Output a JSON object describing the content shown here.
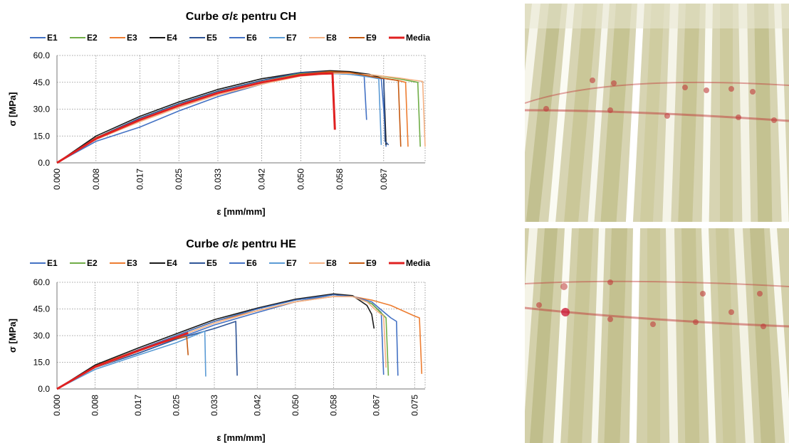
{
  "chart_data": [
    {
      "type": "line",
      "title": "Curbe σ/ε pentru CH",
      "xlabel": "ε [mm/mm]",
      "ylabel": "σ [MPa]",
      "xlim": [
        0,
        0.0755
      ],
      "ylim": [
        0,
        60
      ],
      "x_ticks": [
        "0.000",
        "0.008",
        "0.017",
        "0.025",
        "0.033",
        "0.042",
        "0.050",
        "0.058",
        "0.067"
      ],
      "y_ticks": [
        "0.0",
        "15.0",
        "30.0",
        "45.0",
        "60.0"
      ],
      "grid": true,
      "legend_position": "top",
      "series": [
        {
          "name": "E1",
          "color": "#4472c4",
          "points": [
            [
              0,
              0
            ],
            [
              0.008,
              12
            ],
            [
              0.017,
              20
            ],
            [
              0.025,
              29
            ],
            [
              0.033,
              37
            ],
            [
              0.042,
              44
            ],
            [
              0.05,
              49
            ],
            [
              0.054,
              50
            ],
            [
              0.058,
              50
            ],
            [
              0.062,
              49.5
            ],
            [
              0.0665,
              47
            ],
            [
              0.067,
              30
            ],
            [
              0.0675,
              9
            ]
          ]
        },
        {
          "name": "E2",
          "color": "#70ad47",
          "points": [
            [
              0,
              0
            ],
            [
              0.008,
              14
            ],
            [
              0.017,
              25
            ],
            [
              0.025,
              33
            ],
            [
              0.033,
              40
            ],
            [
              0.042,
              46
            ],
            [
              0.05,
              50
            ],
            [
              0.055,
              51
            ],
            [
              0.06,
              50.5
            ],
            [
              0.065,
              49
            ],
            [
              0.07,
              47
            ],
            [
              0.074,
              45
            ],
            [
              0.0745,
              9
            ]
          ]
        },
        {
          "name": "E3",
          "color": "#ed7d31",
          "points": [
            [
              0,
              0
            ],
            [
              0.008,
              14
            ],
            [
              0.017,
              24
            ],
            [
              0.025,
              32
            ],
            [
              0.033,
              39
            ],
            [
              0.042,
              45
            ],
            [
              0.05,
              49
            ],
            [
              0.055,
              50.5
            ],
            [
              0.06,
              50
            ],
            [
              0.065,
              48
            ],
            [
              0.07,
              46
            ],
            [
              0.0715,
              45
            ],
            [
              0.072,
              9
            ]
          ]
        },
        {
          "name": "E4",
          "color": "#1a1a1a",
          "points": [
            [
              0,
              0
            ],
            [
              0.008,
              15
            ],
            [
              0.017,
              26
            ],
            [
              0.025,
              34
            ],
            [
              0.033,
              41
            ],
            [
              0.042,
              47
            ],
            [
              0.05,
              50.5
            ],
            [
              0.056,
              51.5
            ],
            [
              0.06,
              51
            ],
            [
              0.064,
              49.5
            ],
            [
              0.067,
              47
            ],
            [
              0.0675,
              10
            ]
          ]
        },
        {
          "name": "E5",
          "color": "#2f5597",
          "points": [
            [
              0,
              0
            ],
            [
              0.008,
              14
            ],
            [
              0.017,
              25
            ],
            [
              0.025,
              33
            ],
            [
              0.033,
              40
            ],
            [
              0.042,
              46
            ],
            [
              0.05,
              50.5
            ],
            [
              0.056,
              51
            ],
            [
              0.06,
              50
            ],
            [
              0.064,
              48.5
            ],
            [
              0.067,
              47
            ],
            [
              0.0673,
              12
            ],
            [
              0.068,
              10
            ]
          ]
        },
        {
          "name": "E6",
          "color": "#4472c4",
          "points": [
            [
              0,
              0
            ],
            [
              0.008,
              14
            ],
            [
              0.017,
              24
            ],
            [
              0.025,
              32
            ],
            [
              0.033,
              39
            ],
            [
              0.042,
              45
            ],
            [
              0.05,
              49
            ],
            [
              0.056,
              50
            ],
            [
              0.06,
              49.5
            ],
            [
              0.063,
              48.5
            ],
            [
              0.0635,
              24
            ]
          ]
        },
        {
          "name": "E7",
          "color": "#5b9bd5",
          "points": [
            [
              0,
              0
            ],
            [
              0.008,
              13.5
            ],
            [
              0.017,
              24
            ],
            [
              0.025,
              32
            ],
            [
              0.033,
              39
            ],
            [
              0.042,
              45
            ],
            [
              0.05,
              49
            ],
            [
              0.056,
              50
            ],
            [
              0.06,
              49.5
            ],
            [
              0.064,
              48
            ],
            [
              0.066,
              47
            ],
            [
              0.0665,
              10
            ]
          ]
        },
        {
          "name": "E8",
          "color": "#f4b183",
          "points": [
            [
              0,
              0
            ],
            [
              0.008,
              13
            ],
            [
              0.017,
              23
            ],
            [
              0.025,
              31
            ],
            [
              0.033,
              38
            ],
            [
              0.042,
              44
            ],
            [
              0.05,
              48.5
            ],
            [
              0.056,
              50
            ],
            [
              0.06,
              50
            ],
            [
              0.065,
              49
            ],
            [
              0.07,
              47.5
            ],
            [
              0.075,
              45.5
            ],
            [
              0.0755,
              9
            ]
          ]
        },
        {
          "name": "E9",
          "color": "#c55a11",
          "points": [
            [
              0,
              0
            ],
            [
              0.008,
              14
            ],
            [
              0.017,
              24
            ],
            [
              0.025,
              32
            ],
            [
              0.033,
              39
            ],
            [
              0.042,
              45
            ],
            [
              0.05,
              49.5
            ],
            [
              0.056,
              51
            ],
            [
              0.06,
              50.5
            ],
            [
              0.065,
              48
            ],
            [
              0.07,
              46
            ],
            [
              0.0705,
              9
            ]
          ]
        },
        {
          "name": "Media",
          "color": "#e02020",
          "width": 3,
          "points": [
            [
              0,
              0
            ],
            [
              0.008,
              13.5
            ],
            [
              0.017,
              24
            ],
            [
              0.025,
              32
            ],
            [
              0.033,
              39
            ],
            [
              0.042,
              45
            ],
            [
              0.05,
              49
            ],
            [
              0.054,
              49.8
            ],
            [
              0.0565,
              50
            ],
            [
              0.057,
              18.5
            ]
          ]
        }
      ]
    },
    {
      "type": "line",
      "title": "Curbe σ/ε pentru HE",
      "xlabel": "ε [mm/mm]",
      "ylabel": "σ [MPa]",
      "xlim": [
        0,
        0.0772
      ],
      "ylim": [
        0,
        60
      ],
      "x_ticks": [
        "0.000",
        "0.008",
        "0.017",
        "0.025",
        "0.033",
        "0.042",
        "0.050",
        "0.058",
        "0.067",
        "0.075"
      ],
      "y_ticks": [
        "0.0",
        "15.0",
        "30.0",
        "45.0",
        "60.0"
      ],
      "grid": true,
      "legend_position": "top",
      "series": [
        {
          "name": "E1",
          "color": "#4472c4",
          "points": [
            [
              0,
              0
            ],
            [
              0.008,
              12
            ],
            [
              0.017,
              20
            ],
            [
              0.025,
              28
            ],
            [
              0.033,
              36
            ],
            [
              0.042,
              43
            ],
            [
              0.05,
              49
            ],
            [
              0.058,
              53
            ],
            [
              0.062,
              52
            ],
            [
              0.066,
              48
            ],
            [
              0.068,
              43
            ],
            [
              0.0685,
              8
            ]
          ]
        },
        {
          "name": "E2",
          "color": "#70ad47",
          "points": [
            [
              0,
              0
            ],
            [
              0.008,
              13
            ],
            [
              0.017,
              22
            ],
            [
              0.025,
              30
            ],
            [
              0.033,
              38
            ],
            [
              0.042,
              45
            ],
            [
              0.05,
              50
            ],
            [
              0.058,
              53
            ],
            [
              0.062,
              52
            ],
            [
              0.066,
              48
            ],
            [
              0.069,
              40
            ],
            [
              0.0695,
              7.5
            ]
          ]
        },
        {
          "name": "E3",
          "color": "#ed7d31",
          "points": [
            [
              0,
              0
            ],
            [
              0.008,
              13
            ],
            [
              0.017,
              22
            ],
            [
              0.025,
              30
            ],
            [
              0.033,
              38
            ],
            [
              0.042,
              44
            ],
            [
              0.05,
              49
            ],
            [
              0.058,
              52
            ],
            [
              0.062,
              52
            ],
            [
              0.066,
              50
            ],
            [
              0.07,
              47
            ],
            [
              0.075,
              41
            ],
            [
              0.076,
              40
            ],
            [
              0.0765,
              8.5
            ]
          ]
        },
        {
          "name": "E4",
          "color": "#1a1a1a",
          "points": [
            [
              0,
              0
            ],
            [
              0.008,
              13.5
            ],
            [
              0.017,
              23
            ],
            [
              0.025,
              31
            ],
            [
              0.033,
              39
            ],
            [
              0.042,
              45.5
            ],
            [
              0.05,
              50.5
            ],
            [
              0.058,
              53.5
            ],
            [
              0.062,
              52.5
            ],
            [
              0.065,
              47
            ],
            [
              0.066,
              42
            ],
            [
              0.0665,
              34
            ]
          ]
        },
        {
          "name": "E5",
          "color": "#2f5597",
          "points": [
            [
              0,
              0
            ],
            [
              0.008,
              12
            ],
            [
              0.017,
              20
            ],
            [
              0.025,
              28
            ],
            [
              0.033,
              34
            ],
            [
              0.0375,
              38
            ],
            [
              0.0378,
              7.5
            ]
          ]
        },
        {
          "name": "E6",
          "color": "#4472c4",
          "points": [
            [
              0,
              0
            ],
            [
              0.008,
              12.5
            ],
            [
              0.017,
              22
            ],
            [
              0.025,
              30
            ],
            [
              0.033,
              38
            ],
            [
              0.042,
              45
            ],
            [
              0.05,
              50
            ],
            [
              0.058,
              53
            ],
            [
              0.062,
              52
            ],
            [
              0.066,
              49
            ],
            [
              0.07,
              40
            ],
            [
              0.0712,
              38
            ],
            [
              0.0715,
              7.5
            ]
          ]
        },
        {
          "name": "E7",
          "color": "#5b9bd5",
          "points": [
            [
              0,
              0
            ],
            [
              0.008,
              11
            ],
            [
              0.017,
              19
            ],
            [
              0.025,
              26
            ],
            [
              0.031,
              32.5
            ],
            [
              0.0312,
              7
            ]
          ]
        },
        {
          "name": "E8",
          "color": "#f4b183",
          "points": [
            [
              0,
              0
            ],
            [
              0.008,
              12
            ],
            [
              0.017,
              21
            ],
            [
              0.025,
              29
            ],
            [
              0.033,
              37
            ],
            [
              0.042,
              44
            ],
            [
              0.05,
              49
            ],
            [
              0.058,
              52
            ],
            [
              0.062,
              52
            ],
            [
              0.065,
              49
            ],
            [
              0.067,
              44
            ],
            [
              0.0685,
              41
            ],
            [
              0.069,
              12
            ]
          ]
        },
        {
          "name": "E9",
          "color": "#c55a11",
          "points": [
            [
              0,
              0
            ],
            [
              0.008,
              12.5
            ],
            [
              0.017,
              21.5
            ],
            [
              0.025,
              28.5
            ],
            [
              0.0272,
              29.5
            ],
            [
              0.0275,
              19
            ]
          ]
        },
        {
          "name": "Media",
          "color": "#e02020",
          "width": 3,
          "points": [
            [
              0,
              0
            ],
            [
              0.008,
              12.5
            ],
            [
              0.017,
              21.5
            ],
            [
              0.025,
              29
            ],
            [
              0.0275,
              31.5
            ]
          ]
        }
      ]
    }
  ]
}
